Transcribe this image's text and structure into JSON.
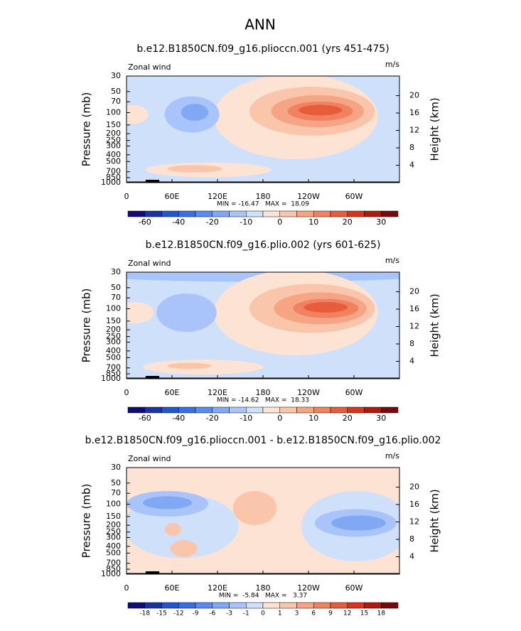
{
  "title": "ANN",
  "chart_data": [
    {
      "type": "contour",
      "title": "b.e12.B1850CN.f09_g16.plioccn.001 (yrs 451-475)",
      "left_label": "Zonal wind",
      "right_label": "m/s",
      "y_label": "Pressure (mb)",
      "y2_label": "Height (km)",
      "xlim": [
        0,
        360
      ],
      "xticks": [
        0,
        {
          "value": 60,
          "label": "60E"
        },
        {
          "value": 120,
          "label": "120E"
        },
        {
          "value": 180,
          "label": "180"
        },
        {
          "value": 240,
          "label": "120W"
        },
        {
          "value": 300,
          "label": "60W"
        }
      ],
      "ylim": [
        1000,
        30
      ],
      "log_y": true,
      "yticks": [
        30,
        50,
        70,
        100,
        150,
        200,
        250,
        300,
        400,
        500,
        700,
        850,
        1000
      ],
      "y2lim": [
        0,
        24.5
      ],
      "y2ticks": [
        4,
        8,
        12,
        16,
        20
      ],
      "stats": "MIN = -16.47   MAX =  18.09",
      "colorbar": {
        "colors": [
          "#0d0d73",
          "#1a339e",
          "#2355cc",
          "#3a6ee6",
          "#5a8cf0",
          "#80a8f5",
          "#a8c4fa",
          "#cfe0fa",
          "#fde3d4",
          "#f9c6ac",
          "#f5a484",
          "#f08262",
          "#e85c3c",
          "#d8361a",
          "#b01a0a",
          "#7a0a0a"
        ],
        "labels": [
          -60,
          -40,
          -20,
          -10,
          0,
          10,
          20,
          30
        ]
      }
    },
    {
      "type": "contour",
      "title": "b.e12.B1850CN.f09_g16.plio.002 (yrs 601-625)",
      "left_label": "Zonal wind",
      "right_label": "m/s",
      "y_label": "Pressure (mb)",
      "y2_label": "Height (km)",
      "xlim": [
        0,
        360
      ],
      "xticks": [
        0,
        {
          "value": 60,
          "label": "60E"
        },
        {
          "value": 120,
          "label": "120E"
        },
        {
          "value": 180,
          "label": "180"
        },
        {
          "value": 240,
          "label": "120W"
        },
        {
          "value": 300,
          "label": "60W"
        }
      ],
      "ylim": [
        1000,
        30
      ],
      "log_y": true,
      "yticks": [
        30,
        50,
        70,
        100,
        150,
        200,
        250,
        300,
        400,
        500,
        700,
        850,
        1000
      ],
      "y2lim": [
        0,
        24.5
      ],
      "y2ticks": [
        4,
        8,
        12,
        16,
        20
      ],
      "stats": "MIN = -14.62   MAX =  18.33",
      "colorbar": {
        "colors": [
          "#0d0d73",
          "#1a339e",
          "#2355cc",
          "#3a6ee6",
          "#5a8cf0",
          "#80a8f5",
          "#a8c4fa",
          "#cfe0fa",
          "#fde3d4",
          "#f9c6ac",
          "#f5a484",
          "#f08262",
          "#e85c3c",
          "#d8361a",
          "#b01a0a",
          "#7a0a0a"
        ],
        "labels": [
          -60,
          -40,
          -20,
          -10,
          0,
          10,
          20,
          30
        ]
      }
    },
    {
      "type": "contour",
      "title": "b.e12.B1850CN.f09_g16.plioccn.001 - b.e12.B1850CN.f09_g16.plio.002",
      "left_label": "Zonal wind",
      "right_label": "m/s",
      "y_label": "Pressure (mb)",
      "y2_label": "Height (km)",
      "xlim": [
        0,
        360
      ],
      "xticks": [
        0,
        {
          "value": 60,
          "label": "60E"
        },
        {
          "value": 120,
          "label": "120E"
        },
        {
          "value": 180,
          "label": "180"
        },
        {
          "value": 240,
          "label": "120W"
        },
        {
          "value": 300,
          "label": "60W"
        }
      ],
      "ylim": [
        1000,
        30
      ],
      "log_y": true,
      "yticks": [
        30,
        50,
        70,
        100,
        150,
        200,
        250,
        300,
        400,
        500,
        700,
        850,
        1000
      ],
      "y2lim": [
        0,
        24.5
      ],
      "y2ticks": [
        4,
        8,
        12,
        16,
        20
      ],
      "stats": "MIN =  -5.84   MAX =   3.37",
      "colorbar": {
        "colors": [
          "#0d0d73",
          "#1a339e",
          "#2355cc",
          "#3a6ee6",
          "#5a8cf0",
          "#80a8f5",
          "#a8c4fa",
          "#cfe0fa",
          "#fde3d4",
          "#f9c6ac",
          "#f5a484",
          "#f08262",
          "#e85c3c",
          "#d8361a",
          "#b01a0a",
          "#7a0a0a"
        ],
        "labels": [
          -18,
          -15,
          -12,
          -9,
          -6,
          -3,
          -1,
          0,
          1,
          3,
          6,
          9,
          12,
          15,
          18
        ]
      }
    }
  ]
}
